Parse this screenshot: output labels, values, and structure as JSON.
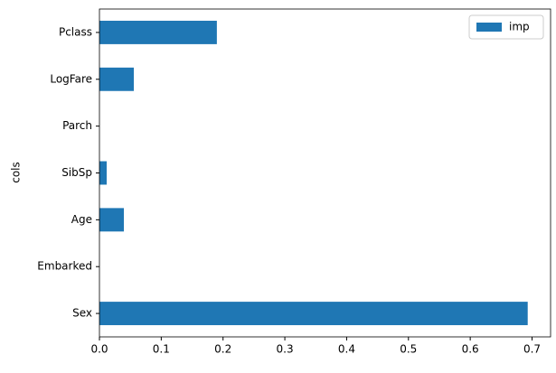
{
  "chart_data": {
    "type": "barh",
    "y_label": "cols",
    "categories": [
      "Sex",
      "Embarked",
      "Age",
      "SibSp",
      "Parch",
      "LogFare",
      "Pclass"
    ],
    "series": [
      {
        "name": "imp",
        "color": "#1f77b4",
        "values": [
          0.693,
          0,
          0.0395,
          0.0117,
          0,
          0.0556,
          0.19
        ]
      }
    ],
    "xlim": [
      0,
      0.73
    ],
    "xticks": [
      {
        "value": 0,
        "label": "0.0"
      },
      0.1,
      0.2,
      0.3,
      0.4,
      0.5,
      0.6,
      0.7
    ],
    "legend": "upper right"
  }
}
